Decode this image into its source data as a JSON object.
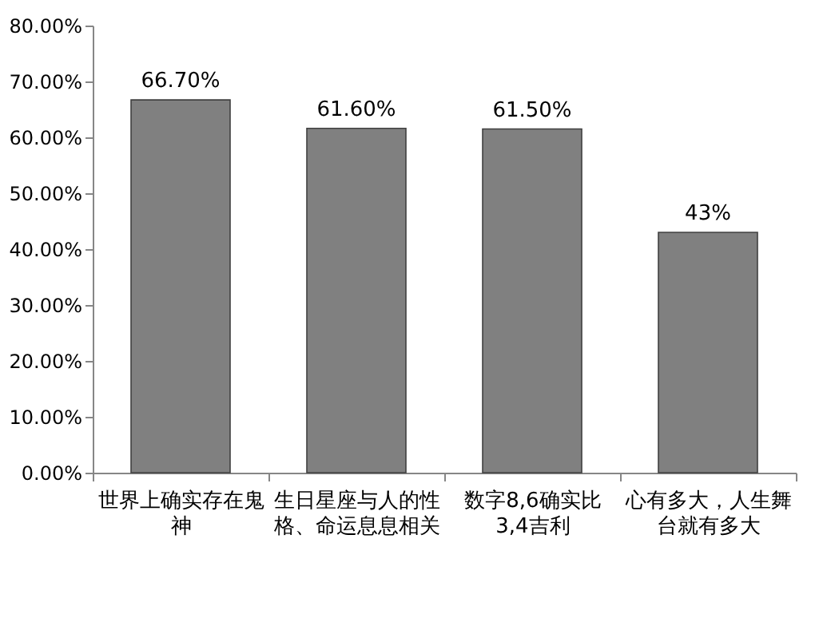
{
  "chart_data": {
    "type": "bar",
    "categories": [
      "世界上确实存在鬼神",
      "生日星座与人的性格、命运息息相关",
      "数字8,6确实比3,4吉利",
      "心有多大，人生舞台就有多大"
    ],
    "values": [
      66.7,
      61.6,
      61.5,
      43
    ],
    "value_labels": [
      "66.70%",
      "61.60%",
      "61.50%",
      "43%"
    ],
    "color": "#808080",
    "ylim": [
      0,
      80
    ],
    "yticks": [
      {
        "value": 0,
        "label": "0.00%"
      },
      {
        "value": 10,
        "label": "10.00%"
      },
      {
        "value": 20,
        "label": "20.00%"
      },
      {
        "value": 30,
        "label": "30.00%"
      },
      {
        "value": 40,
        "label": "40.00%"
      },
      {
        "value": 50,
        "label": "50.00%"
      },
      {
        "value": 60,
        "label": "60.00%"
      },
      {
        "value": 70,
        "label": "70.00%"
      },
      {
        "value": 80,
        "label": "80.00%"
      }
    ],
    "grid": false
  }
}
